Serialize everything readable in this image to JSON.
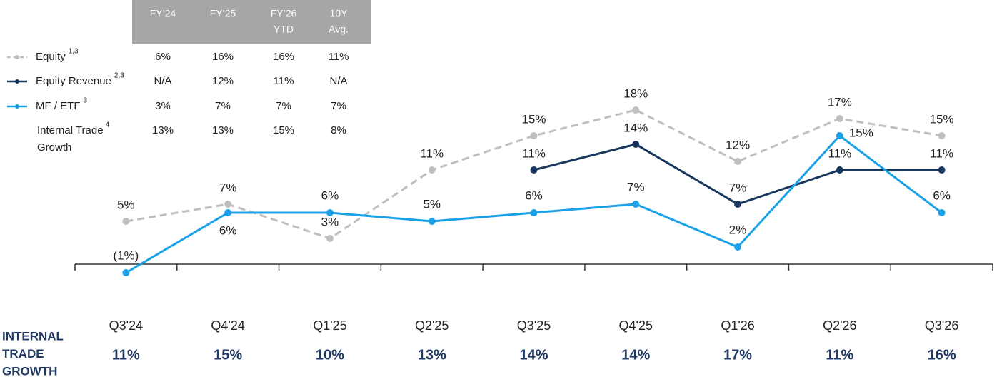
{
  "chart_data": {
    "type": "line",
    "categories": [
      "Q3'24",
      "Q4'24",
      "Q1'25",
      "Q2'25",
      "Q3'25",
      "Q4'25",
      "Q1'26",
      "Q2'26",
      "Q3'26"
    ],
    "series": [
      {
        "name": "Equity",
        "note": "1,3",
        "color": "#bfbfbf",
        "dashed": true,
        "values": [
          5,
          7,
          3,
          11,
          15,
          18,
          12,
          17,
          15
        ],
        "value_labels": [
          "5%",
          "7%",
          "3%",
          "11%",
          "15%",
          "18%",
          "12%",
          "17%",
          "15%"
        ]
      },
      {
        "name": "Equity Revenue",
        "note": "2,3",
        "color": "#17375e",
        "dashed": false,
        "values": [
          null,
          null,
          null,
          null,
          11,
          14,
          7,
          11,
          11
        ],
        "value_labels": [
          null,
          null,
          null,
          null,
          "11%",
          "14%",
          "7%",
          "11%",
          "11%"
        ]
      },
      {
        "name": "MF / ETF",
        "note": "3",
        "color": "#1ba1e8",
        "dashed": false,
        "values": [
          -1,
          6,
          6,
          5,
          6,
          7,
          2,
          15,
          6
        ],
        "value_labels": [
          "(1%)",
          "6%",
          "6%",
          "5%",
          "6%",
          "7%",
          "2%",
          "15%",
          "6%"
        ]
      }
    ],
    "ylim": [
      -2,
      20
    ]
  },
  "legend_table": {
    "columns": [
      [
        "FY’24"
      ],
      [
        "FY’25"
      ],
      [
        "FY’26",
        "YTD"
      ],
      [
        "10Y",
        "Avg."
      ]
    ],
    "rows": [
      [
        "6%",
        "16%",
        "16%",
        "11%"
      ],
      [
        "N/A",
        "12%",
        "11%",
        "N/A"
      ],
      [
        "3%",
        "7%",
        "7%",
        "7%"
      ]
    ],
    "internal_trade": {
      "label": [
        "Internal Trade",
        "Growth"
      ],
      "note": "4",
      "values": [
        "13%",
        "13%",
        "15%",
        "8%"
      ]
    }
  },
  "internal_trade_growth": {
    "label": [
      "INTERNAL",
      "TRADE",
      "GROWTH"
    ],
    "values": [
      "11%",
      "15%",
      "10%",
      "13%",
      "14%",
      "14%",
      "17%",
      "11%",
      "16%"
    ]
  }
}
